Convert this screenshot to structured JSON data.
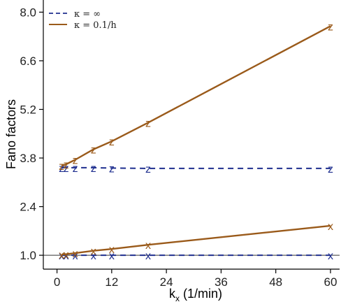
{
  "chart_data": {
    "type": "line",
    "xlabel": "k",
    "xlabel_sub": "x",
    "xlabel_unit": " (1/min)",
    "ylabel": "Fano factors",
    "xlim": [
      -3,
      62
    ],
    "ylim": [
      0.6,
      8.35
    ],
    "x_ticks": [
      0,
      12,
      24,
      36,
      48,
      60
    ],
    "y_ticks": [
      1.0,
      2.4,
      3.8,
      5.2,
      6.6,
      8.0
    ],
    "y_tick_labels": [
      "1.0",
      "2.4",
      "3.8",
      "5.2",
      "6.6",
      "8.0"
    ],
    "reference_line_y": 1.0,
    "legend_position": "top-left",
    "series": [
      {
        "name": "κ = ∞",
        "color": "#1f2f8f",
        "dashed": true,
        "groups": [
          {
            "marker": "z",
            "points": [
              [
                1,
                3.52
              ],
              [
                2,
                3.52
              ],
              [
                4,
                3.52
              ],
              [
                8,
                3.52
              ],
              [
                12,
                3.51
              ],
              [
                20,
                3.5
              ],
              [
                60,
                3.5
              ]
            ]
          },
          {
            "marker": "x",
            "points": [
              [
                1,
                1.0
              ],
              [
                2,
                1.0
              ],
              [
                4,
                1.0
              ],
              [
                8,
                1.0
              ],
              [
                12,
                1.0
              ],
              [
                20,
                1.0
              ],
              [
                60,
                1.0
              ]
            ]
          }
        ]
      },
      {
        "name": "κ = 0.1/h",
        "color": "#9a5a1a",
        "dashed": false,
        "groups": [
          {
            "marker": "z",
            "points": [
              [
                1,
                3.58
              ],
              [
                2,
                3.62
              ],
              [
                4,
                3.75
              ],
              [
                8,
                4.05
              ],
              [
                12,
                4.28
              ],
              [
                20,
                4.82
              ],
              [
                60,
                7.6
              ]
            ]
          },
          {
            "marker": "x",
            "points": [
              [
                1,
                1.02
              ],
              [
                2,
                1.03
              ],
              [
                4,
                1.06
              ],
              [
                8,
                1.13
              ],
              [
                12,
                1.18
              ],
              [
                20,
                1.3
              ],
              [
                60,
                1.85
              ]
            ]
          }
        ]
      }
    ]
  }
}
